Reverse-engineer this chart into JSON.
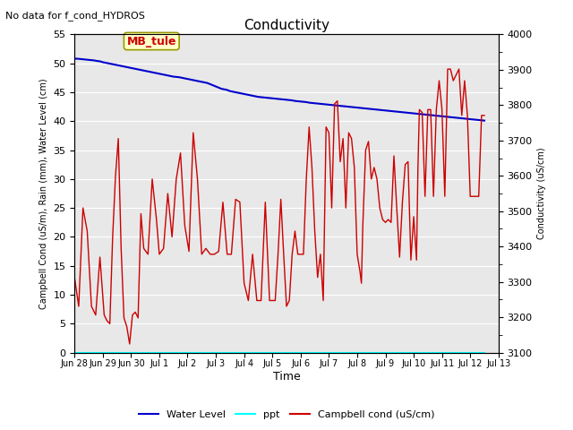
{
  "title": "Conductivity",
  "top_left_text": "No data for f_cond_HYDROS",
  "xlabel": "Time",
  "ylabel_left": "Campbell Cond (uS/m), Rain (mm), Water Level (cm)",
  "ylabel_right": "Conductivity (uS/cm)",
  "ylim_left": [
    0,
    55
  ],
  "ylim_right": [
    3100,
    4000
  ],
  "background_color": "#e8e8e8",
  "annotation_box": "MB_tule",
  "annotation_box_color": "#ffffcc",
  "annotation_box_border": "#999900",
  "annotation_text_color": "#cc0000",
  "water_level_color": "#0000cc",
  "ppt_color": "cyan",
  "campbell_color": "#cc0000",
  "grid_color": "white",
  "tick_labels": [
    "Jun 28",
    "Jun 29",
    "Jun 30",
    "Jul 1",
    "Jul 2",
    "Jul 3",
    "Jul 4",
    "Jul 5",
    "Jul 6",
    "Jul 7",
    "Jul 8",
    "Jul 9",
    "Jul 10",
    "Jul 11",
    "Jul 12",
    "Jul 13"
  ],
  "water_level_x": [
    0.0,
    0.1,
    0.2,
    0.3,
    0.4,
    0.5,
    0.6,
    0.7,
    0.8,
    0.9,
    1.0,
    1.1,
    1.2,
    1.3,
    1.4,
    1.5,
    1.6,
    1.7,
    1.8,
    1.9,
    2.0,
    2.1,
    2.2,
    2.3,
    2.4,
    2.5,
    2.6,
    2.7,
    2.8,
    2.9,
    3.0,
    3.1,
    3.2,
    3.3,
    3.4,
    3.5,
    3.6,
    3.7,
    3.8,
    3.9,
    4.0,
    4.1,
    4.2,
    4.3,
    4.4,
    4.5,
    4.6,
    4.7,
    4.8,
    4.9,
    5.0,
    5.1,
    5.2,
    5.3,
    5.4,
    5.5,
    5.6,
    5.7,
    5.8,
    5.9,
    6.0,
    6.1,
    6.2,
    6.3,
    6.4,
    6.5,
    6.6,
    6.7,
    6.8,
    6.9,
    7.0,
    7.1,
    7.2,
    7.3,
    7.4,
    7.5,
    7.6,
    7.7,
    7.8,
    7.9,
    8.0,
    8.1,
    8.2,
    8.3,
    8.4,
    8.5,
    8.6,
    8.7,
    8.8,
    8.9,
    9.0,
    9.1,
    9.2,
    9.3,
    9.4,
    9.5,
    9.6,
    9.7,
    9.8,
    9.9,
    10.0,
    10.1,
    10.2,
    10.3,
    10.4,
    10.5,
    10.6,
    10.7,
    10.8,
    10.9,
    11.0,
    11.1,
    11.2,
    11.3,
    11.4,
    11.5,
    11.6,
    11.7,
    11.8,
    11.9,
    12.0,
    12.1,
    12.2,
    12.3,
    12.4,
    12.5,
    12.6,
    12.7,
    12.8,
    12.9,
    13.0,
    13.1,
    13.2,
    13.3,
    13.4,
    13.5,
    13.6,
    13.7,
    13.8,
    13.9,
    14.0,
    14.1,
    14.2,
    14.3,
    14.4,
    14.5
  ],
  "water_level_y": [
    50.8,
    50.8,
    50.75,
    50.7,
    50.65,
    50.6,
    50.55,
    50.5,
    50.4,
    50.35,
    50.2,
    50.1,
    50.0,
    49.9,
    49.8,
    49.7,
    49.6,
    49.5,
    49.4,
    49.3,
    49.2,
    49.1,
    49.0,
    48.9,
    48.8,
    48.7,
    48.6,
    48.5,
    48.4,
    48.3,
    48.2,
    48.1,
    48.0,
    47.9,
    47.8,
    47.7,
    47.65,
    47.6,
    47.5,
    47.4,
    47.3,
    47.2,
    47.1,
    47.0,
    46.9,
    46.8,
    46.7,
    46.6,
    46.4,
    46.2,
    46.0,
    45.8,
    45.6,
    45.5,
    45.4,
    45.2,
    45.1,
    45.0,
    44.9,
    44.8,
    44.7,
    44.6,
    44.5,
    44.4,
    44.3,
    44.2,
    44.15,
    44.1,
    44.05,
    44.0,
    43.95,
    43.9,
    43.85,
    43.8,
    43.75,
    43.7,
    43.65,
    43.6,
    43.5,
    43.45,
    43.4,
    43.35,
    43.3,
    43.2,
    43.15,
    43.1,
    43.05,
    43.0,
    42.95,
    42.9,
    42.85,
    42.8,
    42.75,
    42.7,
    42.65,
    42.6,
    42.55,
    42.5,
    42.45,
    42.4,
    42.35,
    42.3,
    42.25,
    42.2,
    42.15,
    42.1,
    42.05,
    42.0,
    41.95,
    41.9,
    41.85,
    41.8,
    41.75,
    41.7,
    41.65,
    41.6,
    41.55,
    41.5,
    41.45,
    41.4,
    41.35,
    41.3,
    41.25,
    41.2,
    41.15,
    41.1,
    41.05,
    41.0,
    40.95,
    40.9,
    40.85,
    40.8,
    40.75,
    40.7,
    40.65,
    40.6,
    40.55,
    40.5,
    40.45,
    40.4,
    40.35,
    40.3,
    40.25,
    40.2,
    40.15,
    40.1
  ],
  "campbell_x": [
    0.0,
    0.15,
    0.3,
    0.45,
    0.6,
    0.75,
    0.9,
    1.05,
    1.15,
    1.25,
    1.35,
    1.45,
    1.55,
    1.65,
    1.75,
    1.85,
    1.95,
    2.05,
    2.15,
    2.25,
    2.35,
    2.45,
    2.6,
    2.75,
    2.9,
    3.0,
    3.15,
    3.3,
    3.45,
    3.6,
    3.75,
    3.9,
    4.05,
    4.2,
    4.35,
    4.5,
    4.65,
    4.8,
    4.95,
    5.1,
    5.25,
    5.4,
    5.55,
    5.7,
    5.85,
    6.0,
    6.15,
    6.3,
    6.45,
    6.6,
    6.75,
    6.9,
    7.0,
    7.1,
    7.2,
    7.3,
    7.4,
    7.5,
    7.6,
    7.7,
    7.8,
    7.9,
    8.0,
    8.1,
    8.2,
    8.3,
    8.4,
    8.5,
    8.6,
    8.7,
    8.8,
    8.9,
    9.0,
    9.1,
    9.2,
    9.3,
    9.4,
    9.5,
    9.6,
    9.7,
    9.8,
    9.9,
    10.0,
    10.1,
    10.15,
    10.2,
    10.3,
    10.4,
    10.5,
    10.6,
    10.7,
    10.8,
    10.9,
    11.0,
    11.1,
    11.2,
    11.3,
    11.4,
    11.5,
    11.6,
    11.7,
    11.8,
    11.9,
    12.0,
    12.1,
    12.15,
    12.2,
    12.3,
    12.4,
    12.5,
    12.6,
    12.7,
    12.8,
    12.9,
    13.0,
    13.1,
    13.2,
    13.3,
    13.4,
    13.5,
    13.6,
    13.7,
    13.8,
    13.9,
    14.0,
    14.1,
    14.2,
    14.3,
    14.4,
    14.5
  ],
  "campbell_y": [
    13.0,
    8.0,
    25.0,
    21.0,
    8.0,
    6.5,
    16.5,
    6.5,
    5.5,
    5.0,
    20.0,
    30.5,
    37.0,
    18.0,
    6.0,
    4.5,
    1.5,
    6.5,
    7.0,
    6.0,
    24.0,
    18.0,
    17.0,
    30.0,
    23.0,
    17.0,
    18.0,
    27.5,
    20.0,
    30.0,
    34.5,
    22.0,
    17.5,
    38.0,
    30.0,
    17.0,
    18.0,
    17.0,
    17.0,
    17.5,
    26.0,
    17.0,
    17.0,
    26.5,
    26.0,
    12.0,
    9.0,
    17.0,
    9.0,
    9.0,
    26.0,
    9.0,
    9.0,
    9.0,
    17.0,
    26.5,
    17.0,
    8.0,
    9.0,
    17.0,
    21.0,
    17.0,
    17.0,
    17.0,
    30.0,
    39.0,
    32.0,
    21.0,
    13.0,
    17.0,
    9.0,
    39.0,
    38.0,
    25.0,
    43.0,
    43.5,
    33.0,
    37.0,
    25.0,
    38.0,
    37.0,
    32.0,
    17.0,
    14.0,
    12.0,
    22.0,
    35.0,
    36.5,
    30.0,
    32.0,
    30.0,
    25.0,
    23.0,
    22.5,
    23.0,
    22.5,
    34.0,
    25.0,
    16.5,
    26.0,
    32.5,
    33.0,
    16.0,
    23.5,
    16.0,
    32.0,
    42.0,
    41.5,
    27.0,
    42.0,
    42.0,
    27.0,
    42.0,
    47.0,
    42.0,
    27.0,
    49.0,
    49.0,
    47.0,
    48.0,
    49.0,
    41.0,
    47.0,
    41.0,
    27.0,
    27.0,
    27.0,
    27.0,
    41.0,
    41.0
  ]
}
